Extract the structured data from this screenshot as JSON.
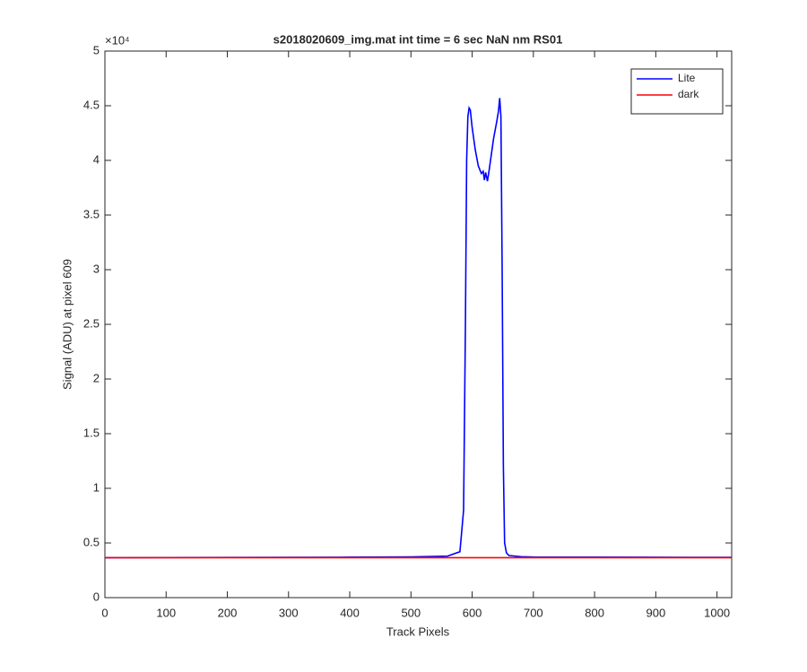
{
  "chart_data": {
    "type": "line",
    "title": "s2018020609_img.mat int time = 6 sec  NaN nm RS01",
    "x_label": "Track Pixels",
    "y_label": "Signal (ADU) at pixel 609",
    "y_exponent_label": "×10⁴",
    "xlim": [
      0,
      1024
    ],
    "xticks": [
      0,
      100,
      200,
      300,
      400,
      500,
      600,
      700,
      800,
      900,
      1000
    ],
    "ylim": [
      0,
      50000
    ],
    "yticks": [
      {
        "value": 0,
        "label": "0"
      },
      {
        "value": 5000,
        "label": "0.5"
      },
      {
        "value": 10000,
        "label": "1"
      },
      {
        "value": 15000,
        "label": "1.5"
      },
      {
        "value": 20000,
        "label": "2"
      },
      {
        "value": 25000,
        "label": "2.5"
      },
      {
        "value": 30000,
        "label": "3"
      },
      {
        "value": 35000,
        "label": "3.5"
      },
      {
        "value": 40000,
        "label": "4"
      },
      {
        "value": 45000,
        "label": "4.5"
      },
      {
        "value": 50000,
        "label": "5"
      }
    ],
    "legend": "northeast",
    "series": [
      {
        "name": "Lite",
        "color": "#0000ff",
        "x": [
          0,
          100,
          200,
          300,
          400,
          500,
          560,
          580,
          586,
          589,
          591,
          593,
          595,
          597,
          600,
          605,
          610,
          615,
          618,
          620,
          622,
          625,
          628,
          630,
          635,
          640,
          643,
          645,
          647,
          649,
          651,
          653,
          656,
          660,
          680,
          700,
          800,
          900,
          1024
        ],
        "values": [
          3650,
          3660,
          3670,
          3680,
          3700,
          3730,
          3800,
          4200,
          8000,
          25000,
          40000,
          44000,
          44800,
          44600,
          43000,
          41000,
          39500,
          38800,
          39000,
          38200,
          38900,
          38100,
          39200,
          40000,
          42000,
          43500,
          44500,
          45700,
          44000,
          30000,
          12000,
          5000,
          4100,
          3850,
          3750,
          3720,
          3700,
          3690,
          3680
        ]
      },
      {
        "name": "dark",
        "color": "#ff0000",
        "x": [
          0,
          1024
        ],
        "values": [
          3650,
          3650
        ]
      }
    ]
  }
}
